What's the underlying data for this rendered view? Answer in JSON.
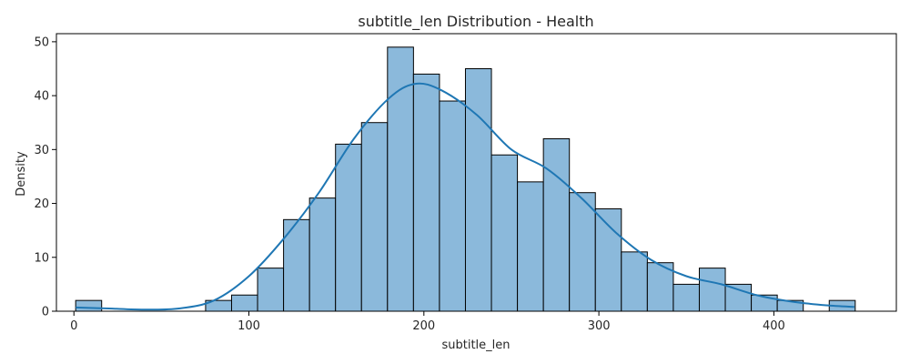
{
  "chart_data": {
    "type": "bar",
    "title": "subtitle_len Distribution - Health",
    "xlabel": "subtitle_len",
    "ylabel": "Density",
    "xlim": [
      -10,
      470
    ],
    "ylim": [
      0,
      51.5
    ],
    "x_ticks": [
      0,
      100,
      200,
      300,
      400
    ],
    "y_ticks": [
      0,
      10,
      20,
      30,
      40,
      50
    ],
    "bin_width": 14.85,
    "bins": [
      {
        "start": 1,
        "count": 2
      },
      {
        "start": 75.25,
        "count": 2
      },
      {
        "start": 90.1,
        "count": 3
      },
      {
        "start": 104.95,
        "count": 8
      },
      {
        "start": 119.8,
        "count": 17
      },
      {
        "start": 134.65,
        "count": 21
      },
      {
        "start": 149.5,
        "count": 31
      },
      {
        "start": 164.35,
        "count": 35
      },
      {
        "start": 179.2,
        "count": 49
      },
      {
        "start": 194.05,
        "count": 44
      },
      {
        "start": 208.9,
        "count": 39
      },
      {
        "start": 223.75,
        "count": 45
      },
      {
        "start": 238.6,
        "count": 29
      },
      {
        "start": 253.45,
        "count": 24
      },
      {
        "start": 268.3,
        "count": 32
      },
      {
        "start": 283.15,
        "count": 22
      },
      {
        "start": 298.0,
        "count": 19
      },
      {
        "start": 312.85,
        "count": 11
      },
      {
        "start": 327.7,
        "count": 9
      },
      {
        "start": 342.55,
        "count": 5
      },
      {
        "start": 357.4,
        "count": 8
      },
      {
        "start": 372.25,
        "count": 5
      },
      {
        "start": 387.1,
        "count": 3
      },
      {
        "start": 401.95,
        "count": 2
      },
      {
        "start": 431.65,
        "count": 2
      }
    ],
    "kde": {
      "x": [
        1,
        20,
        40,
        60,
        80,
        100,
        120,
        140,
        160,
        180,
        195,
        210,
        230,
        250,
        270,
        290,
        310,
        330,
        350,
        370,
        390,
        410,
        430,
        446
      ],
      "y": [
        0.7,
        0.5,
        0.3,
        0.5,
        2.0,
        6.5,
        13.5,
        22.0,
        32.0,
        39.5,
        42.2,
        41.0,
        36.5,
        30.0,
        26.5,
        21.0,
        14.5,
        9.5,
        6.5,
        5.0,
        3.0,
        1.8,
        1.1,
        0.8
      ]
    },
    "bar_fill": "#8bb9db",
    "bar_edge": "#000000",
    "kde_color": "#1f77b4",
    "grid": false,
    "legend": "none"
  }
}
